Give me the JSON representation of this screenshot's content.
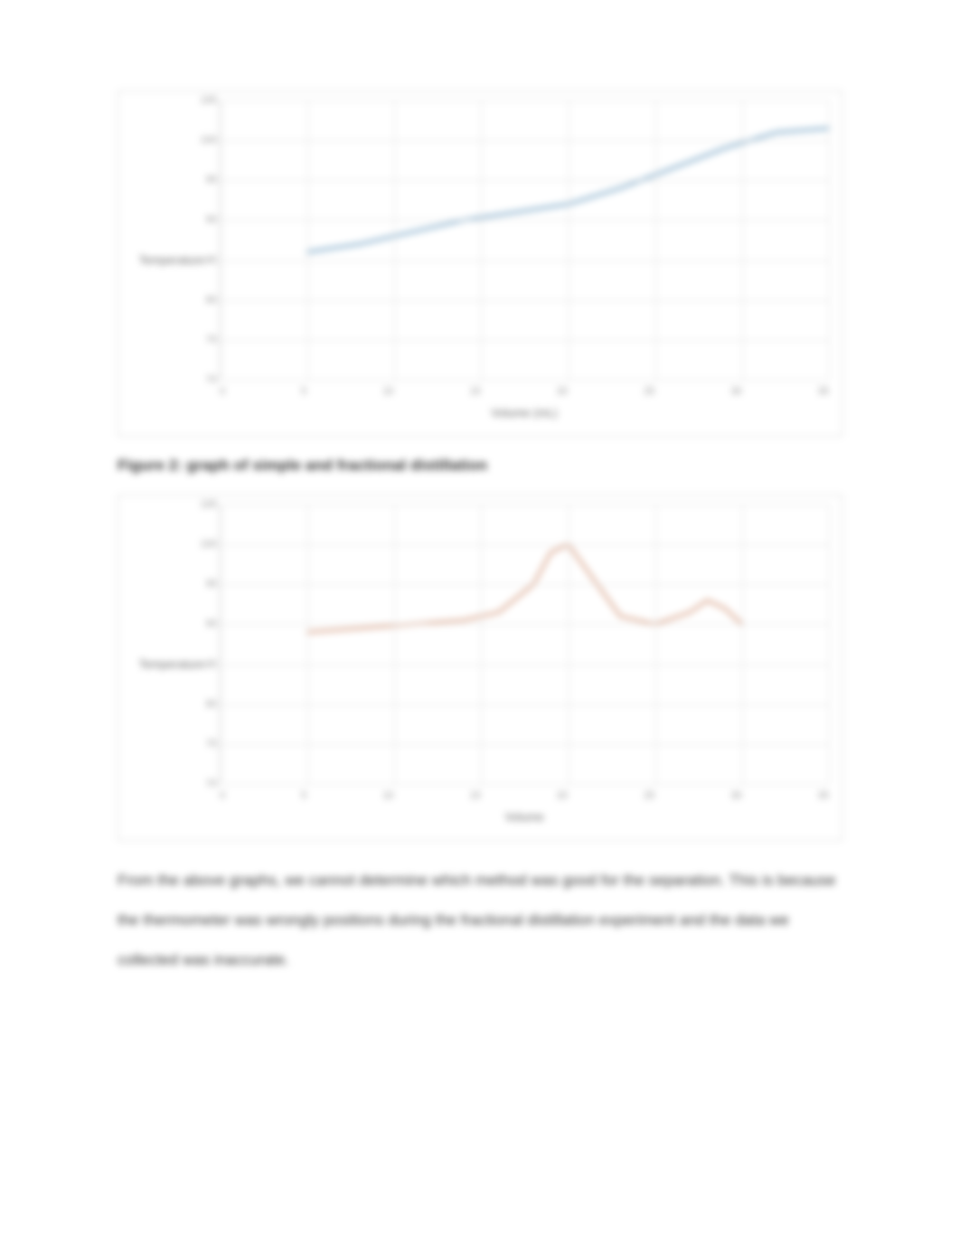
{
  "chart1": {
    "type": "line",
    "y_axis_label": "Temperature",
    "x_axis_label": "Volume (mL)",
    "line_color": "#7ba7c7",
    "line_width": 3,
    "background_color": "#ffffff",
    "grid_color": "#e0e0e0",
    "border_color": "#d8d8d8",
    "tick_color": "#888888",
    "label_color": "#666666",
    "ylim": [
      70,
      105
    ],
    "xlim": [
      0,
      35
    ],
    "y_ticks": [
      "70",
      "75",
      "80",
      "85",
      "90",
      "95",
      "100",
      "105"
    ],
    "x_ticks": [
      "0",
      "5",
      "10",
      "15",
      "20",
      "25",
      "30",
      "35"
    ],
    "x_values": [
      5,
      8,
      11,
      14,
      17,
      20,
      23,
      26,
      29,
      32,
      35
    ],
    "y_values": [
      86,
      87,
      88.5,
      90,
      91,
      92,
      94,
      96.5,
      99,
      101,
      101.5
    ],
    "label_fontsize": 13,
    "tick_fontsize": 11
  },
  "figure_caption": "Figure 2: graph of simple and fractional distillation",
  "chart2": {
    "type": "line",
    "y_axis_label": "Temperature",
    "x_axis_label": "Volume",
    "line_color": "#d9a58c",
    "line_width": 3,
    "background_color": "#ffffff",
    "grid_color": "#e0e0e0",
    "border_color": "#d8d8d8",
    "tick_color": "#888888",
    "label_color": "#666666",
    "ylim": [
      70,
      105
    ],
    "xlim": [
      0,
      35
    ],
    "y_ticks": [
      "70",
      "75",
      "80",
      "85",
      "90",
      "95",
      "100",
      "105"
    ],
    "x_ticks": [
      "0",
      "5",
      "10",
      "15",
      "20",
      "25",
      "30",
      "35"
    ],
    "x_values": [
      5,
      8,
      11,
      14,
      16,
      18,
      19,
      20,
      21,
      23,
      25,
      27,
      28,
      29,
      30
    ],
    "y_values": [
      89,
      89.5,
      90,
      90.5,
      91.5,
      95,
      99,
      100,
      97,
      91,
      90,
      91.5,
      93,
      92,
      90
    ],
    "label_fontsize": 13,
    "tick_fontsize": 11
  },
  "body_text": "From the above graphs, we cannot determine which method was good for the separation. This is because the thermometer was wrongly positions during the fractional distillation experiment and the data we collected was inaccurate."
}
